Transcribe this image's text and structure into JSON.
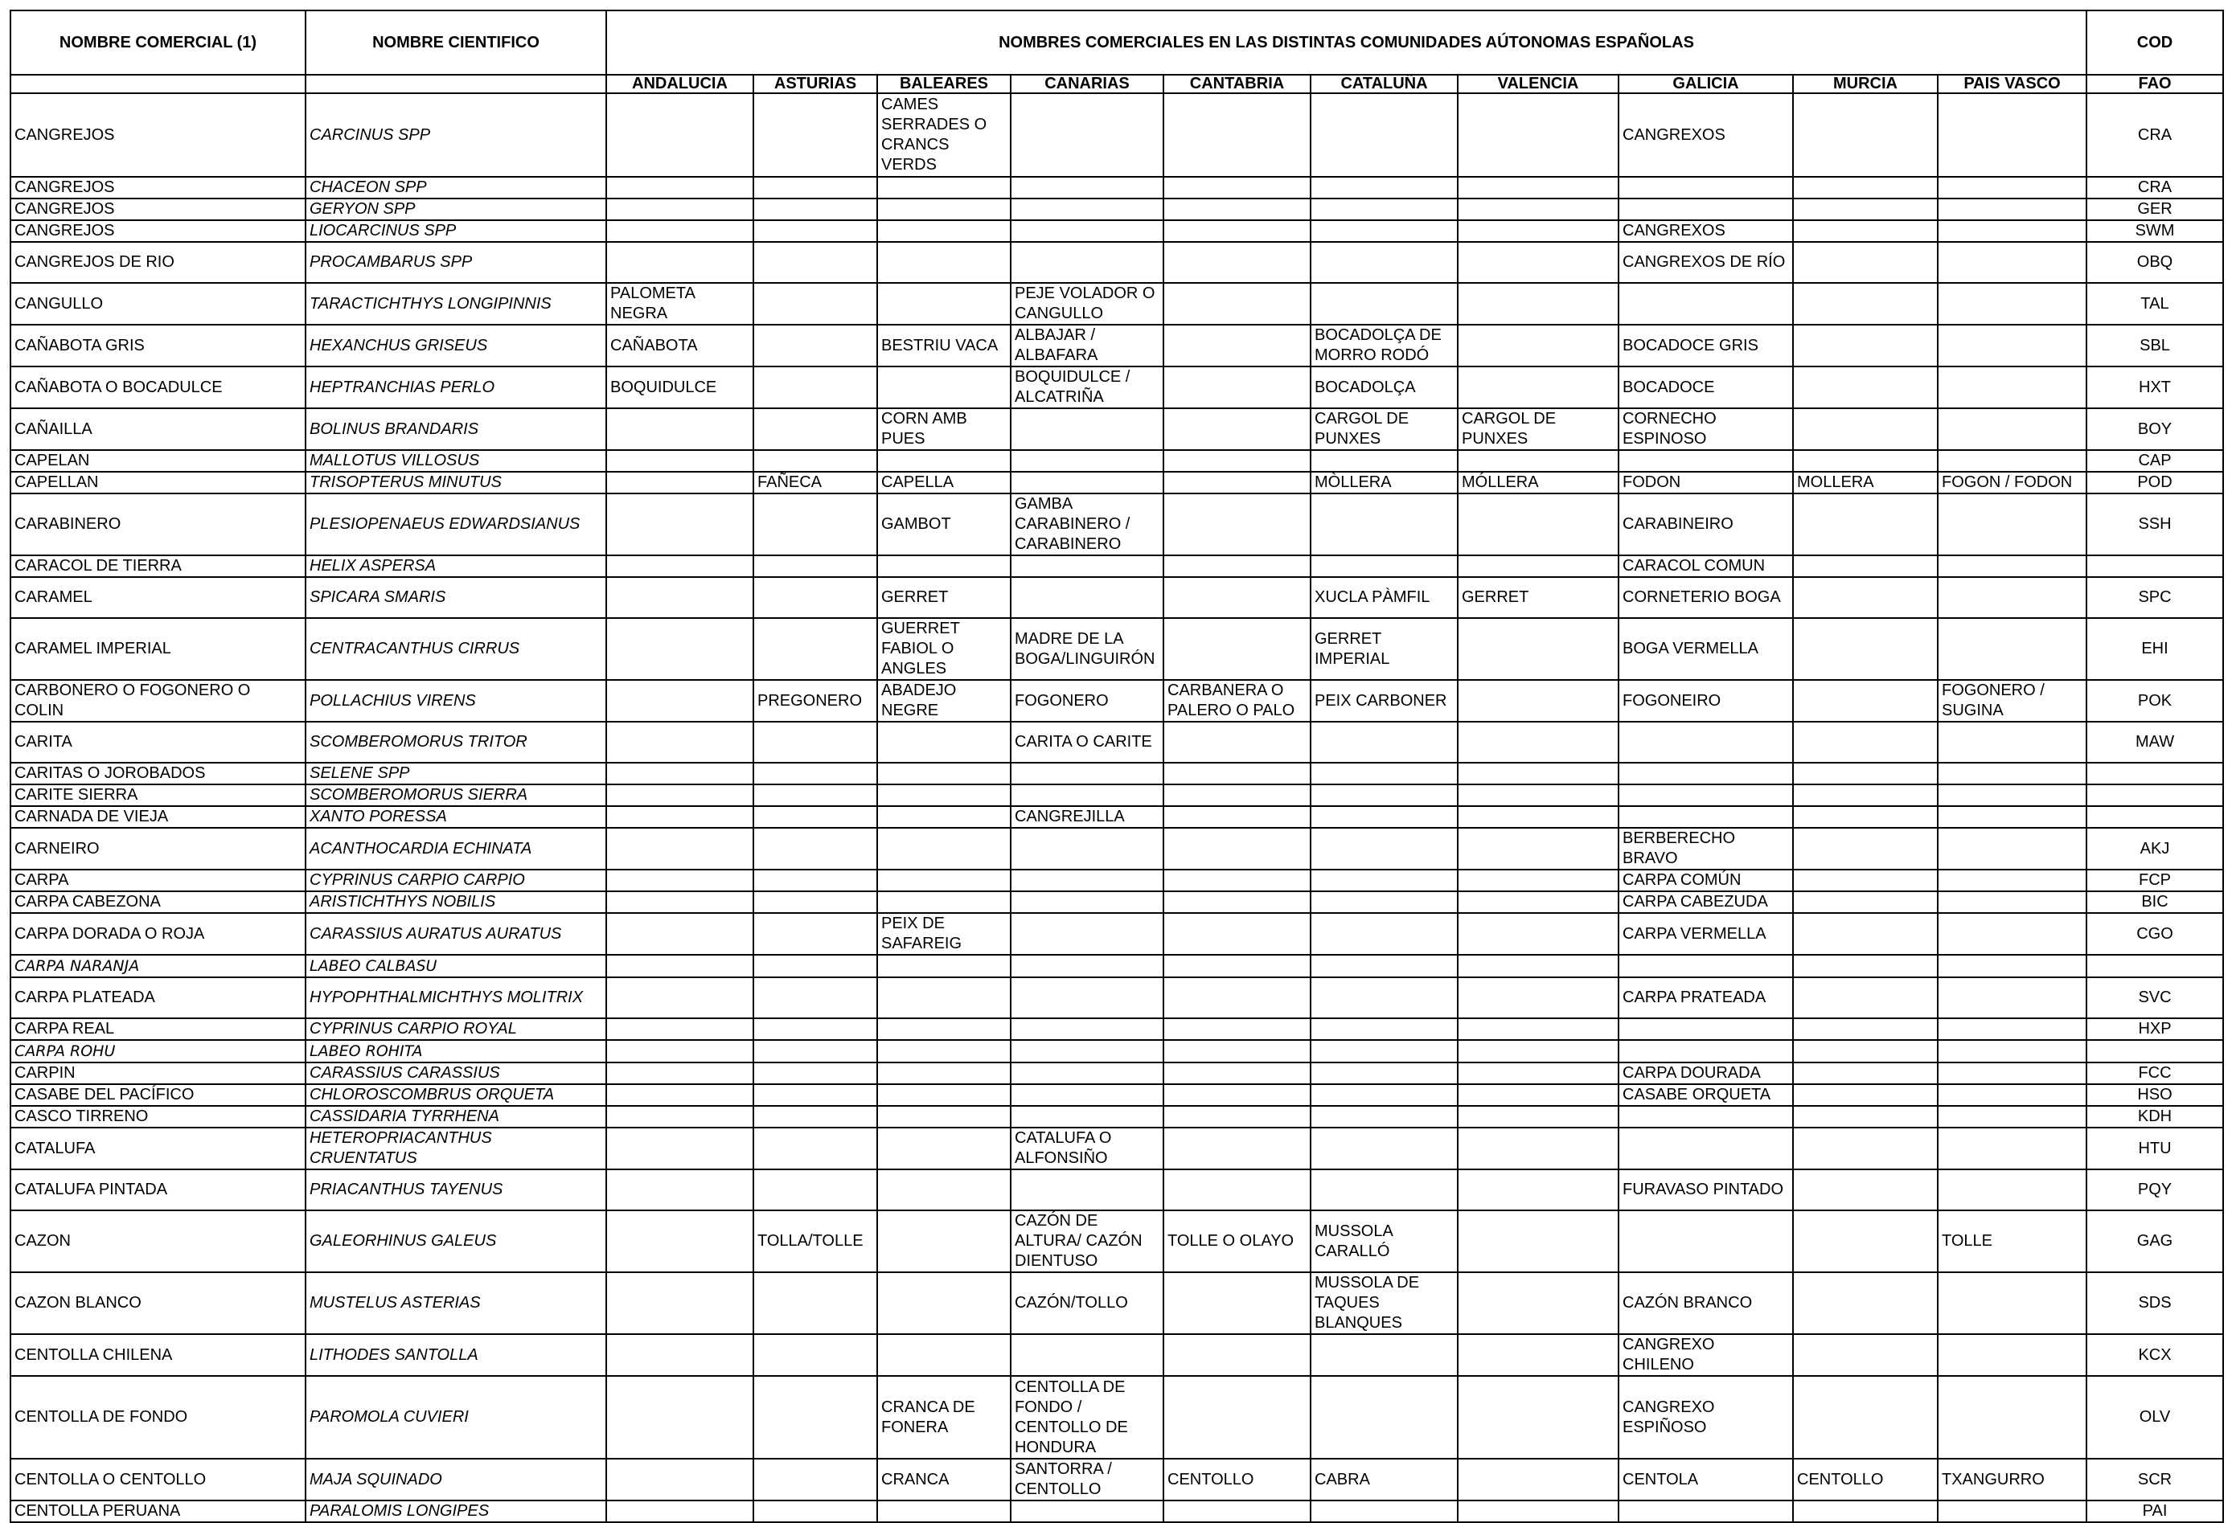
{
  "headers": {
    "commercial": "NOMBRE COMERCIAL (1)",
    "scientific": "NOMBRE CIENTIFICO",
    "regions_group": "NOMBRES COMERCIALES EN LAS DISTINTAS COMUNIDADES AÚTONOMAS ESPAÑOLAS",
    "cod": "COD",
    "fao": "FAO",
    "regions": [
      "ANDALUCIA",
      "ASTURIAS",
      "BALEARES",
      "CANARIAS",
      "CANTABRIA",
      "CATALUÑA",
      "VALENCIA",
      "GALICIA",
      "MURCIA",
      "PAIS VASCO"
    ]
  },
  "rows": [
    {
      "com": "CANGREJOS",
      "sci": "CARCINUS SPP",
      "r": [
        "",
        "",
        "CAMES SERRADES O CRANCS VERDS",
        "",
        "",
        "",
        "",
        "CANGREXOS",
        "",
        ""
      ],
      "fao": "CRA",
      "h": 104
    },
    {
      "com": "CANGREJOS",
      "sci": "CHACEON SPP",
      "r": [
        "",
        "",
        "",
        "",
        "",
        "",
        "",
        "",
        "",
        ""
      ],
      "fao": "CRA",
      "h": 25
    },
    {
      "com": "CANGREJOS",
      "sci": "GERYON SPP",
      "r": [
        "",
        "",
        "",
        "",
        "",
        "",
        "",
        "",
        "",
        ""
      ],
      "fao": "GER",
      "h": 26
    },
    {
      "com": "CANGREJOS",
      "sci": "LIOCARCINUS SPP",
      "r": [
        "",
        "",
        "",
        "",
        "",
        "",
        "",
        "CANGREXOS",
        "",
        ""
      ],
      "fao": "SWM",
      "h": 25
    },
    {
      "com": "CANGREJOS DE RIO",
      "sci": "PROCAMBARUS SPP",
      "r": [
        "",
        "",
        "",
        "",
        "",
        "",
        "",
        "CANGREXOS DE RÍO",
        "",
        ""
      ],
      "fao": "OBQ",
      "h": 51
    },
    {
      "com": "CANGULLO",
      "sci": "TARACTICHTHYS LONGIPINNIS",
      "r": [
        "PALOMETA NEGRA",
        "",
        "",
        "PEJE VOLADOR O CANGULLO",
        "",
        "",
        "",
        "",
        "",
        ""
      ],
      "fao": "TAL",
      "h": 51
    },
    {
      "com": "CAÑABOTA GRIS",
      "sci": "HEXANCHUS GRISEUS",
      "r": [
        "CAÑABOTA",
        "",
        "BESTRIU VACA",
        "ALBAJAR / ALBAFARA",
        "",
        "BOCADOLÇA DE MORRO RODÓ",
        "",
        "BOCADOCE GRIS",
        "",
        ""
      ],
      "fao": "SBL",
      "h": 51
    },
    {
      "com": "CAÑABOTA O BOCADULCE",
      "sci": "HEPTRANCHIAS PERLO",
      "r": [
        "BOQUIDULCE",
        "",
        "",
        "BOQUIDULCE / ALCATRIÑA",
        "",
        "BOCADOLÇA",
        "",
        "BOCADOCE",
        "",
        ""
      ],
      "fao": "HXT",
      "h": 51
    },
    {
      "com": "CAÑAILLA",
      "sci": "BOLINUS BRANDARIS",
      "r": [
        "",
        "",
        "CORN AMB PUES",
        "",
        "",
        "CARGOL DE PUNXES",
        "CARGOL DE PUNXES",
        "CORNECHO ESPINOSO",
        "",
        ""
      ],
      "fao": "BOY",
      "h": 51
    },
    {
      "com": "CAPELAN",
      "sci": "MALLOTUS VILLOSUS",
      "r": [
        "",
        "",
        "",
        "",
        "",
        "",
        "",
        "",
        "",
        ""
      ],
      "fao": "CAP",
      "h": 25
    },
    {
      "com": "CAPELLAN",
      "sci": "TRISOPTERUS MINUTUS",
      "r": [
        "",
        "FAÑECA",
        "CAPELLA",
        "",
        "",
        "MÒLLERA",
        "MÓLLERA",
        "FODON",
        "MOLLERA",
        "FOGON / FODON"
      ],
      "fao": "POD",
      "h": 26
    },
    {
      "com": "CARABINERO",
      "sci": "PLESIOPENAEUS EDWARDSIANUS",
      "r": [
        "",
        "",
        "GAMBOT",
        "GAMBA CARABINERO / CARABINERO",
        "",
        "",
        "",
        "CARABINEIRO",
        "",
        ""
      ],
      "fao": "SSH",
      "h": 77
    },
    {
      "com": "CARACOL DE TIERRA",
      "sci": "HELIX ASPERSA",
      "r": [
        "",
        "",
        "",
        "",
        "",
        "",
        "",
        "CARACOL COMUN",
        "",
        ""
      ],
      "fao": "",
      "h": 25
    },
    {
      "com": "CARAMEL",
      "sci": "SPICARA SMARIS",
      "r": [
        "",
        "",
        "GERRET",
        "",
        "",
        "XUCLA PÀMFIL",
        "GERRET",
        "CORNETERIO BOGA",
        "",
        ""
      ],
      "fao": "SPC",
      "h": 51
    },
    {
      "com": "CARAMEL IMPERIAL",
      "sci": "CENTRACANTHUS CIRRUS",
      "r": [
        "",
        "",
        "GUERRET FABIOL O ANGLES",
        "MADRE DE LA BOGA/LINGUIRÓN",
        "",
        "GERRET IMPERIAL",
        "",
        "BOGA VERMELLA",
        "",
        ""
      ],
      "fao": "EHI",
      "h": 77
    },
    {
      "com": "CARBONERO O FOGONERO O COLIN",
      "sci": "POLLACHIUS  VIRENS",
      "r": [
        "",
        "PREGONERO",
        "ABADEJO NEGRE",
        "FOGONERO",
        "CARBANERA O PALERO O PALO",
        "PEIX CARBONER",
        "",
        "FOGONEIRO",
        "",
        "FOGONERO / SUGINA"
      ],
      "fao": "POK",
      "h": 51
    },
    {
      "com": "CARITA",
      "sci": "SCOMBEROMORUS TRITOR",
      "r": [
        "",
        "",
        "",
        "CARITA O CARITE",
        "",
        "",
        "",
        "",
        "",
        ""
      ],
      "fao": "MAW",
      "h": 51
    },
    {
      "com": "CARITAS O JOROBADOS",
      "sci": "SELENE SPP",
      "r": [
        "",
        "",
        "",
        "",
        "",
        "",
        "",
        "",
        "",
        ""
      ],
      "fao": "",
      "h": 25
    },
    {
      "com": "CARITE SIERRA",
      "sci": "SCOMBEROMORUS SIERRA",
      "r": [
        "",
        "",
        "",
        "",
        "",
        "",
        "",
        "",
        "",
        ""
      ],
      "fao": "",
      "h": 26
    },
    {
      "com": "CARNADA DE  VIEJA",
      "sci": "XANTO PORESSA",
      "r": [
        "",
        "",
        "",
        "CANGREJILLA",
        "",
        "",
        "",
        "",
        "",
        ""
      ],
      "fao": "",
      "h": 25
    },
    {
      "com": "CARNEIRO",
      "sci": "ACANTHOCARDIA ECHINATA",
      "r": [
        "",
        "",
        "",
        "",
        "",
        "",
        "",
        "BERBERECHO BRAVO",
        "",
        ""
      ],
      "fao": "AKJ",
      "h": 51
    },
    {
      "com": "CARPA",
      "sci": "CYPRINUS CARPIO CARPIO",
      "r": [
        "",
        "",
        "",
        "",
        "",
        "",
        "",
        "CARPA COMÚN",
        "",
        ""
      ],
      "fao": "FCP",
      "h": 25
    },
    {
      "com": "CARPA CABEZONA",
      "sci": "ARISTICHTHYS NOBILIS",
      "r": [
        "",
        "",
        "",
        "",
        "",
        "",
        "",
        "CARPA CABEZUDA",
        "",
        ""
      ],
      "fao": "BIC",
      "h": 26
    },
    {
      "com": "CARPA DORADA  O ROJA",
      "sci": "CARASSIUS AURATUS AURATUS",
      "r": [
        "",
        "",
        "PEIX DE SAFAREIG",
        "",
        "",
        "",
        "",
        "CARPA VERMELLA",
        "",
        ""
      ],
      "fao": "CGO",
      "h": 51
    },
    {
      "com": "CARPA NARANJA",
      "sci": "LABEO CALBASU",
      "r": [
        "",
        "",
        "",
        "",
        "",
        "",
        "",
        "",
        "",
        ""
      ],
      "fao": "",
      "h": 28,
      "hand": true
    },
    {
      "com": "CARPA PLATEADA",
      "sci": "HYPOPHTHALMICHTHYS MOLITRIX",
      "r": [
        "",
        "",
        "",
        "",
        "",
        "",
        "",
        "CARPA PRATEADA",
        "",
        ""
      ],
      "fao": "SVC",
      "h": 51
    },
    {
      "com": "CARPA REAL",
      "sci": "CYPRINUS CARPIO ROYAL",
      "r": [
        "",
        "",
        "",
        "",
        "",
        "",
        "",
        "",
        "",
        ""
      ],
      "fao": "HXP",
      "h": 26
    },
    {
      "com": "CARPA ROHU",
      "sci": "LABEO ROHITA",
      "r": [
        "",
        "",
        "",
        "",
        "",
        "",
        "",
        "",
        "",
        ""
      ],
      "fao": "",
      "h": 28,
      "hand": true
    },
    {
      "com": "CARPIN",
      "sci": "CARASSIUS CARASSIUS",
      "r": [
        "",
        "",
        "",
        "",
        "",
        "",
        "",
        "CARPA DOURADA",
        "",
        ""
      ],
      "fao": "FCC",
      "h": 25
    },
    {
      "com": "CASABE DEL PACÍFICO",
      "sci": "CHLOROSCOMBRUS ORQUETA",
      "r": [
        "",
        "",
        "",
        "",
        "",
        "",
        "",
        "CASABE ORQUETA",
        "",
        ""
      ],
      "fao": "HSO",
      "h": 26
    },
    {
      "com": "CASCO TIRRENO",
      "sci": "CASSIDARIA TYRRHENA",
      "r": [
        "",
        "",
        "",
        "",
        "",
        "",
        "",
        "",
        "",
        ""
      ],
      "fao": "KDH",
      "h": 25
    },
    {
      "com": "CATALUFA",
      "sci": "HETEROPRIACANTHUS CRUENTATUS",
      "r": [
        "",
        "",
        "",
        "CATALUFA O ALFONSIÑO",
        "",
        "",
        "",
        "",
        "",
        ""
      ],
      "fao": "HTU",
      "h": 51
    },
    {
      "com": "CATALUFA PINTADA",
      "sci": "PRIACANTHUS TAYENUS",
      "r": [
        "",
        "",
        "",
        "",
        "",
        "",
        "",
        "FURAVASO PINTADO",
        "",
        ""
      ],
      "fao": "PQY",
      "h": 51
    },
    {
      "com": "CAZON",
      "sci": "GALEORHINUS GALEUS",
      "r": [
        "",
        "TOLLA/TOLLE",
        "",
        "CAZÓN DE ALTURA/ CAZÓN DIENTUSO",
        "TOLLE O OLAYO",
        "MUSSOLA CARALLÓ",
        "",
        "",
        "",
        "TOLLE"
      ],
      "fao": "GAG",
      "h": 77
    },
    {
      "com": "CAZON BLANCO",
      "sci": "MUSTELUS ASTERIAS",
      "r": [
        "",
        "",
        "",
        "CAZÓN/TOLLO",
        "",
        "MUSSOLA DE TAQUES BLANQUES",
        "",
        "CAZÓN BRANCO",
        "",
        ""
      ],
      "fao": "SDS",
      "h": 77
    },
    {
      "com": "CENTOLLA CHILENA",
      "sci": "LITHODES SANTOLLA",
      "r": [
        "",
        "",
        "",
        "",
        "",
        "",
        "",
        "CANGREXO CHILENO",
        "",
        ""
      ],
      "fao": "KCX",
      "h": 51
    },
    {
      "com": "CENTOLLA DE FONDO",
      "sci": "PAROMOLA CUVIERI",
      "r": [
        "",
        "",
        "CRANCA DE FONERA",
        "CENTOLLA DE FONDO / CENTOLLO DE HONDURA",
        "",
        "",
        "",
        "CANGREXO ESPIÑOSO",
        "",
        ""
      ],
      "fao": "OLV",
      "h": 103
    },
    {
      "com": "CENTOLLA O CENTOLLO",
      "sci": "MAJA SQUINADO",
      "r": [
        "",
        "",
        "CRANCA",
        "SANTORRA / CENTOLLO",
        "CENTOLLO",
        "CABRA",
        "",
        "CENTOLA",
        "CENTOLLO",
        "TXANGURRO"
      ],
      "fao": "SCR",
      "h": 51
    },
    {
      "com": "CENTOLLA PERUANA",
      "sci": "PARALOMIS LONGIPES",
      "r": [
        "",
        "",
        "",
        "",
        "",
        "",
        "",
        "",
        "",
        ""
      ],
      "fao": "PAI",
      "h": 25
    }
  ]
}
